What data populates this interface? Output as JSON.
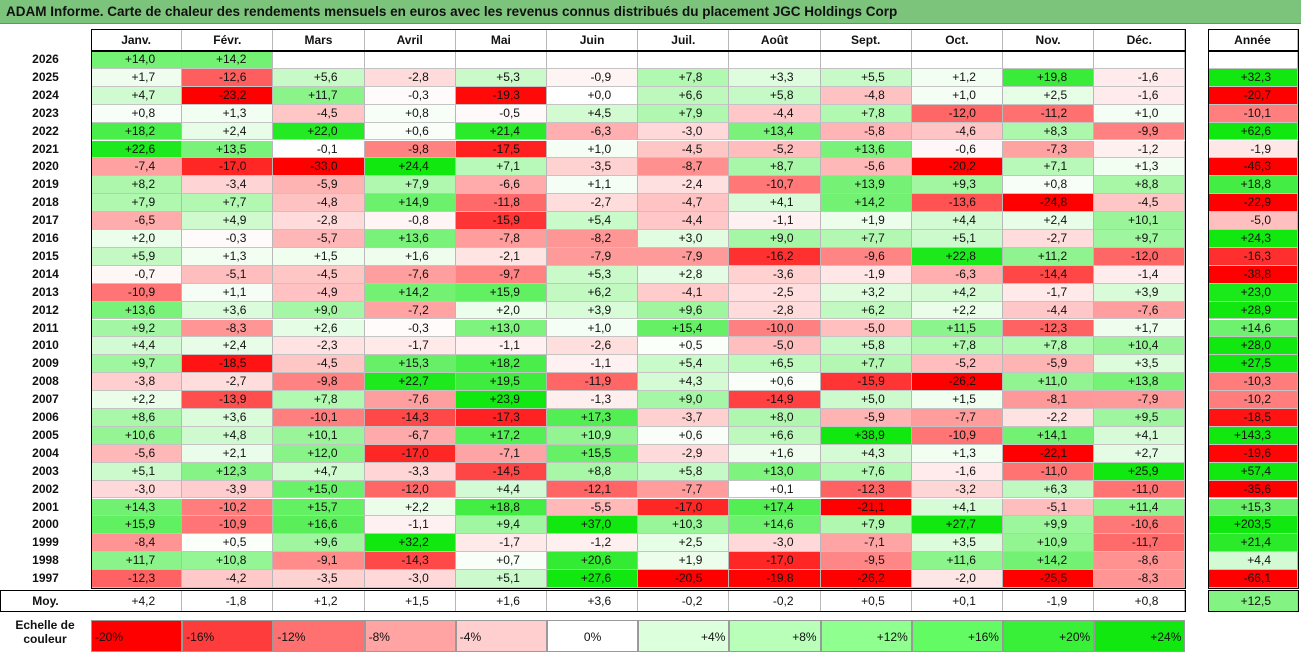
{
  "title": "ADAM Informe. Carte de chaleur des rendements mensuels en euros avec les revenus connus distribués du placement JGC Holdings Corp",
  "chart_data": {
    "type": "heatmap",
    "months": [
      "Janv.",
      "Févr.",
      "Mars",
      "Avril",
      "Mai",
      "Juin",
      "Juil.",
      "Août",
      "Sept.",
      "Oct.",
      "Nov.",
      "Déc."
    ],
    "annual_label": "Année",
    "rows": [
      {
        "year": "2026",
        "values": [
          14.0,
          14.2,
          null,
          null,
          null,
          null,
          null,
          null,
          null,
          null,
          null,
          null
        ],
        "annual": null
      },
      {
        "year": "2025",
        "values": [
          1.7,
          -12.6,
          5.6,
          -2.8,
          5.3,
          -0.9,
          7.8,
          3.3,
          5.5,
          1.2,
          19.8,
          -1.6
        ],
        "annual": 32.3
      },
      {
        "year": "2024",
        "values": [
          4.7,
          -23.2,
          11.7,
          -0.3,
          -19.3,
          -0.0,
          6.6,
          5.8,
          -4.8,
          1.0,
          2.5,
          -1.6
        ],
        "annual": -20.7
      },
      {
        "year": "2023",
        "values": [
          0.8,
          1.3,
          -4.5,
          0.8,
          -0.5,
          4.5,
          7.9,
          -4.4,
          7.8,
          -12.0,
          -11.2,
          1.0
        ],
        "annual": -10.1
      },
      {
        "year": "2022",
        "values": [
          18.2,
          2.4,
          22.0,
          0.6,
          21.4,
          -6.3,
          -3.0,
          13.4,
          -5.8,
          -4.6,
          8.3,
          -9.9
        ],
        "annual": 62.6
      },
      {
        "year": "2021",
        "values": [
          22.6,
          13.5,
          -0.1,
          -9.8,
          -17.5,
          1.0,
          -4.5,
          -5.2,
          13.6,
          -0.6,
          -7.3,
          -1.2
        ],
        "annual": -1.9
      },
      {
        "year": "2020",
        "values": [
          -7.4,
          -17.0,
          -33.0,
          24.4,
          7.1,
          -3.5,
          -8.7,
          8.7,
          -5.6,
          -20.2,
          7.1,
          1.3
        ],
        "annual": -46.3
      },
      {
        "year": "2019",
        "values": [
          8.2,
          -3.4,
          -5.9,
          7.9,
          -6.6,
          1.1,
          -2.4,
          -10.7,
          13.9,
          9.3,
          0.8,
          8.8
        ],
        "annual": 18.8
      },
      {
        "year": "2018",
        "values": [
          7.9,
          7.7,
          -4.8,
          14.9,
          -11.8,
          -2.7,
          -4.7,
          4.1,
          14.2,
          -13.6,
          -24.8,
          -4.5
        ],
        "annual": -22.9
      },
      {
        "year": "2017",
        "values": [
          -6.5,
          4.9,
          -2.8,
          -0.8,
          -15.9,
          5.4,
          -4.4,
          -1.1,
          1.9,
          4.4,
          2.4,
          10.1
        ],
        "annual": -5.0
      },
      {
        "year": "2016",
        "values": [
          2.0,
          -0.3,
          -5.7,
          13.6,
          -7.8,
          -8.2,
          3.0,
          9.0,
          7.7,
          5.1,
          -2.7,
          9.7
        ],
        "annual": 24.3
      },
      {
        "year": "2015",
        "values": [
          5.9,
          1.3,
          1.5,
          1.6,
          -2.1,
          -7.9,
          -7.9,
          -16.2,
          -9.6,
          22.8,
          11.2,
          -12.0
        ],
        "annual": -16.3
      },
      {
        "year": "2014",
        "values": [
          -0.7,
          -5.1,
          -4.5,
          -7.6,
          -9.7,
          5.3,
          2.8,
          -3.6,
          -1.9,
          -6.3,
          -14.4,
          -1.4
        ],
        "annual": -38.8
      },
      {
        "year": "2013",
        "values": [
          -10.9,
          1.1,
          -4.9,
          14.2,
          15.9,
          6.2,
          -4.1,
          -2.5,
          3.2,
          4.2,
          -1.7,
          3.9
        ],
        "annual": 23.0
      },
      {
        "year": "2012",
        "values": [
          13.6,
          3.6,
          9.0,
          -7.2,
          2.0,
          3.9,
          9.6,
          -2.8,
          6.2,
          2.2,
          -4.4,
          -7.6
        ],
        "annual": 28.9
      },
      {
        "year": "2011",
        "values": [
          9.2,
          -8.3,
          2.6,
          -0.3,
          13.0,
          1.0,
          15.4,
          -10.0,
          -5.0,
          11.5,
          -12.3,
          1.7
        ],
        "annual": 14.6
      },
      {
        "year": "2010",
        "values": [
          4.4,
          2.4,
          -2.3,
          -1.7,
          -1.1,
          -2.6,
          0.5,
          -5.0,
          5.8,
          7.8,
          7.8,
          10.4
        ],
        "annual": 28.0
      },
      {
        "year": "2009",
        "values": [
          9.7,
          -18.5,
          -4.5,
          15.3,
          18.2,
          -1.1,
          5.4,
          6.5,
          7.7,
          -5.2,
          -5.9,
          3.5
        ],
        "annual": 27.5
      },
      {
        "year": "2008",
        "values": [
          -3.8,
          -2.7,
          -9.8,
          22.7,
          19.5,
          -11.9,
          4.3,
          0.6,
          -15.9,
          -26.2,
          11.0,
          13.8
        ],
        "annual": -10.3
      },
      {
        "year": "2007",
        "values": [
          2.2,
          -13.9,
          7.8,
          -7.6,
          23.9,
          -1.3,
          9.0,
          -14.9,
          5.0,
          1.5,
          -8.1,
          -7.9
        ],
        "annual": -10.2
      },
      {
        "year": "2006",
        "values": [
          8.6,
          3.6,
          -10.1,
          -14.3,
          -17.3,
          17.3,
          -3.7,
          8.0,
          -5.9,
          -7.7,
          -2.2,
          9.5
        ],
        "annual": -18.5
      },
      {
        "year": "2005",
        "values": [
          10.6,
          4.8,
          10.1,
          -6.7,
          17.2,
          10.9,
          0.6,
          6.6,
          38.9,
          -10.9,
          14.1,
          4.1
        ],
        "annual": 143.3
      },
      {
        "year": "2004",
        "values": [
          -5.6,
          2.1,
          12.0,
          -17.0,
          -7.1,
          15.5,
          -2.9,
          1.6,
          4.3,
          1.3,
          -22.1,
          2.7
        ],
        "annual": -19.6
      },
      {
        "year": "2003",
        "values": [
          5.1,
          12.3,
          4.7,
          -3.3,
          -14.5,
          8.8,
          5.8,
          13.0,
          7.6,
          -1.6,
          -11.0,
          25.9
        ],
        "annual": 57.4
      },
      {
        "year": "2002",
        "values": [
          -3.0,
          -3.9,
          15.0,
          -12.0,
          4.4,
          -12.1,
          -7.7,
          0.1,
          -12.3,
          -3.2,
          6.3,
          -11.0
        ],
        "annual": -35.6
      },
      {
        "year": "2001",
        "values": [
          14.3,
          -10.2,
          15.7,
          2.2,
          18.8,
          -5.5,
          -17.0,
          17.4,
          -21.1,
          4.1,
          -5.1,
          11.4
        ],
        "annual": 15.3
      },
      {
        "year": "2000",
        "values": [
          15.9,
          -10.9,
          16.6,
          -1.1,
          9.4,
          37.0,
          10.3,
          14.6,
          7.9,
          27.7,
          9.9,
          -10.6
        ],
        "annual": 203.5
      },
      {
        "year": "1999",
        "values": [
          -8.4,
          0.5,
          9.6,
          32.2,
          -1.7,
          -1.2,
          2.5,
          -3.0,
          -7.1,
          3.5,
          10.9,
          -11.7
        ],
        "annual": 21.4
      },
      {
        "year": "1998",
        "values": [
          11.7,
          10.8,
          -9.1,
          -14.3,
          0.7,
          20.6,
          1.9,
          -17.0,
          -9.5,
          11.6,
          14.2,
          -8.6
        ],
        "annual": 4.4
      },
      {
        "year": "1997",
        "values": [
          -12.3,
          -4.2,
          -3.5,
          -3.0,
          5.1,
          27.6,
          -20.5,
          -19.8,
          -26.2,
          -2.0,
          -25.5,
          -8.3
        ],
        "annual": -66.1
      }
    ],
    "average": {
      "label": "Moy.",
      "values": [
        4.2,
        -1.8,
        1.2,
        1.5,
        1.6,
        3.6,
        -0.2,
        -0.2,
        0.5,
        0.1,
        -1.9,
        0.8
      ],
      "annual": 12.5
    },
    "color_scale": {
      "label": "Echelle de couleur",
      "stops": [
        "-20%",
        "-16%",
        "-12%",
        "-8%",
        "-4%",
        "0%",
        "+4%",
        "+8%",
        "+12%",
        "+16%",
        "+20%",
        "+24%"
      ],
      "colors": [
        "#ff0000",
        "#ff3c3c",
        "#ff7070",
        "#ffa3a3",
        "#ffcfcf",
        "#ffffff",
        "#dcffdc",
        "#b9ffb9",
        "#8fff8f",
        "#63fb63",
        "#39f039",
        "#10e810"
      ]
    }
  }
}
